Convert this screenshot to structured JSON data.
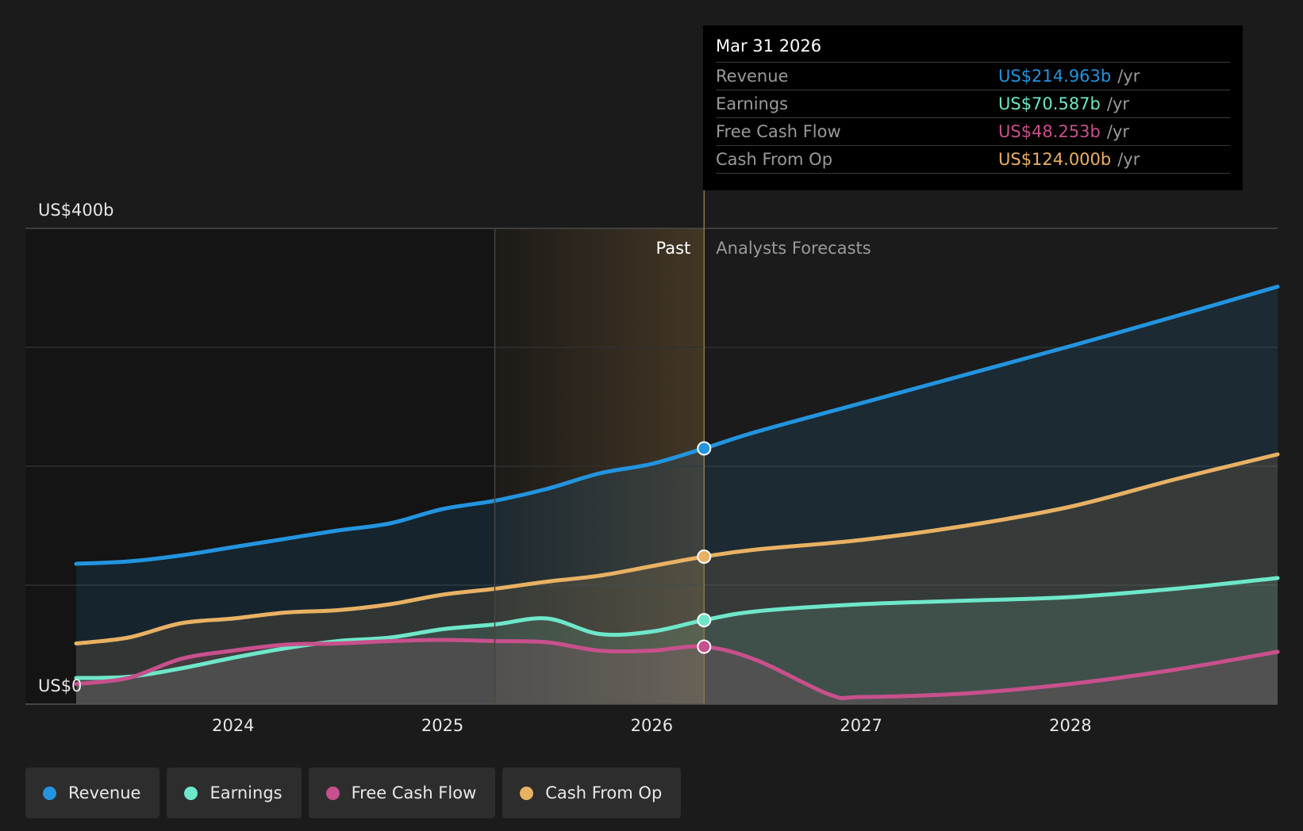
{
  "chart_data": {
    "type": "line",
    "y_top_label": "US$400b",
    "y_bottom_label": "US$0",
    "ylim": [
      0,
      400
    ],
    "xlim": [
      2023.25,
      2028.99
    ],
    "x_ticks": [
      {
        "value": 2024,
        "label": "2024"
      },
      {
        "value": 2025,
        "label": "2025"
      },
      {
        "value": 2026,
        "label": "2026"
      },
      {
        "value": 2027,
        "label": "2027"
      },
      {
        "value": 2028,
        "label": "2028"
      }
    ],
    "past_label": "Past",
    "forecast_label": "Analysts Forecasts",
    "divider_x": 2026.25,
    "highlight_start_x": 2025.25,
    "grid": true,
    "legend_position": "bottom-left",
    "series": [
      {
        "name": "Revenue",
        "color": "#2394df",
        "points": [
          [
            2023.25,
            118
          ],
          [
            2023.5,
            120
          ],
          [
            2023.75,
            125
          ],
          [
            2024.0,
            132
          ],
          [
            2024.25,
            139
          ],
          [
            2024.5,
            146
          ],
          [
            2024.75,
            152
          ],
          [
            2025.0,
            164
          ],
          [
            2025.25,
            171
          ],
          [
            2025.5,
            181
          ],
          [
            2025.75,
            194
          ],
          [
            2026.0,
            202
          ],
          [
            2026.25,
            215
          ],
          [
            2026.5,
            229
          ],
          [
            2027.0,
            253
          ],
          [
            2027.5,
            277
          ],
          [
            2028.0,
            301
          ],
          [
            2028.5,
            326
          ],
          [
            2028.99,
            351
          ]
        ]
      },
      {
        "name": "Earnings",
        "color": "#6ee7c9",
        "points": [
          [
            2023.25,
            22
          ],
          [
            2023.5,
            23
          ],
          [
            2023.75,
            30
          ],
          [
            2024.0,
            39
          ],
          [
            2024.25,
            47
          ],
          [
            2024.5,
            53
          ],
          [
            2024.75,
            56
          ],
          [
            2025.0,
            63
          ],
          [
            2025.25,
            67
          ],
          [
            2025.5,
            72
          ],
          [
            2025.75,
            59
          ],
          [
            2026.0,
            61
          ],
          [
            2026.25,
            70.6
          ],
          [
            2026.5,
            78
          ],
          [
            2027.0,
            84
          ],
          [
            2027.5,
            87
          ],
          [
            2028.0,
            90
          ],
          [
            2028.5,
            97
          ],
          [
            2028.99,
            106
          ]
        ]
      },
      {
        "name": "Free Cash Flow",
        "color": "#c8508c",
        "points": [
          [
            2023.25,
            17
          ],
          [
            2023.5,
            22
          ],
          [
            2023.75,
            38
          ],
          [
            2024.0,
            45
          ],
          [
            2024.25,
            50
          ],
          [
            2024.5,
            51
          ],
          [
            2024.75,
            53
          ],
          [
            2025.0,
            54
          ],
          [
            2025.25,
            53
          ],
          [
            2025.5,
            52
          ],
          [
            2025.75,
            45
          ],
          [
            2026.0,
            45
          ],
          [
            2026.25,
            48.3
          ],
          [
            2026.5,
            37
          ],
          [
            2026.85,
            8
          ],
          [
            2027.0,
            6
          ],
          [
            2027.5,
            9
          ],
          [
            2028.0,
            17
          ],
          [
            2028.5,
            29
          ],
          [
            2028.99,
            44
          ]
        ]
      },
      {
        "name": "Cash From Op",
        "color": "#e8b163",
        "points": [
          [
            2023.25,
            51
          ],
          [
            2023.5,
            56
          ],
          [
            2023.75,
            68
          ],
          [
            2024.0,
            72
          ],
          [
            2024.25,
            77
          ],
          [
            2024.5,
            79
          ],
          [
            2024.75,
            84
          ],
          [
            2025.0,
            92
          ],
          [
            2025.25,
            97
          ],
          [
            2025.5,
            103
          ],
          [
            2025.75,
            108
          ],
          [
            2026.0,
            116
          ],
          [
            2026.25,
            124
          ],
          [
            2026.5,
            130
          ],
          [
            2027.0,
            138
          ],
          [
            2027.5,
            150
          ],
          [
            2028.0,
            166
          ],
          [
            2028.5,
            189
          ],
          [
            2028.99,
            210
          ]
        ]
      }
    ]
  },
  "tooltip": {
    "date": "Mar 31 2026",
    "unit": "/yr",
    "rows": [
      {
        "label": "Revenue",
        "value": "US$214.963b",
        "color": "#2394df"
      },
      {
        "label": "Earnings",
        "value": "US$70.587b",
        "color": "#6ee7c9"
      },
      {
        "label": "Free Cash Flow",
        "value": "US$48.253b",
        "color": "#c8508c"
      },
      {
        "label": "Cash From Op",
        "value": "US$124.000b",
        "color": "#e8b163"
      }
    ]
  },
  "legend": [
    {
      "label": "Revenue",
      "color": "#2394df"
    },
    {
      "label": "Earnings",
      "color": "#6ee7c9"
    },
    {
      "label": "Free Cash Flow",
      "color": "#c8508c"
    },
    {
      "label": "Cash From Op",
      "color": "#e8b163"
    }
  ]
}
